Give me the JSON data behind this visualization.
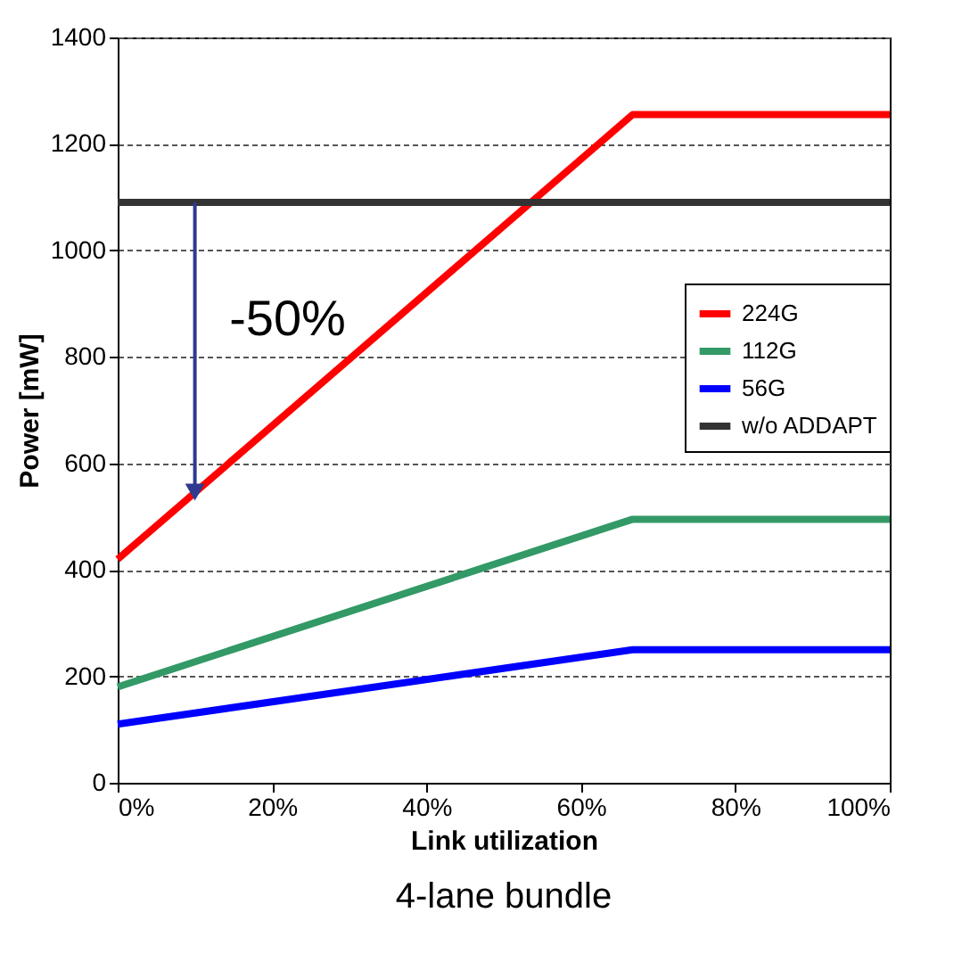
{
  "chart_data": {
    "type": "line",
    "title": "4-lane bundle",
    "xlabel": "Link utilization",
    "ylabel": "Power [mW]",
    "xlim": [
      0,
      100
    ],
    "xticks": [
      {
        "value": 0,
        "label": "0%"
      },
      {
        "value": 20,
        "label": "20%"
      },
      {
        "value": 40,
        "label": "40%"
      },
      {
        "value": 60,
        "label": "60%"
      },
      {
        "value": 80,
        "label": "80%"
      },
      {
        "value": 100,
        "label": "100%"
      }
    ],
    "ylim": [
      0,
      1400
    ],
    "yticks": [
      0,
      200,
      400,
      600,
      800,
      1000,
      1200,
      1400
    ],
    "grid": "y",
    "legend": "right",
    "marker": "none",
    "line_style": "solid",
    "series": [
      {
        "name": "224G",
        "color": "#ff0000",
        "x": [
          0,
          66.7,
          100
        ],
        "values": [
          420,
          1255,
          1255
        ]
      },
      {
        "name": "112G",
        "color": "#339966",
        "x": [
          0,
          66.7,
          100
        ],
        "values": [
          180,
          495,
          495
        ]
      },
      {
        "name": "56G",
        "color": "#0000ff",
        "x": [
          0,
          66.7,
          100
        ],
        "values": [
          110,
          250,
          250
        ]
      },
      {
        "name": "w/o ADDAPT",
        "color": "#333333",
        "x": [
          0,
          100
        ],
        "values": [
          1090,
          1090
        ]
      }
    ],
    "annotations": [
      "-50%"
    ]
  }
}
